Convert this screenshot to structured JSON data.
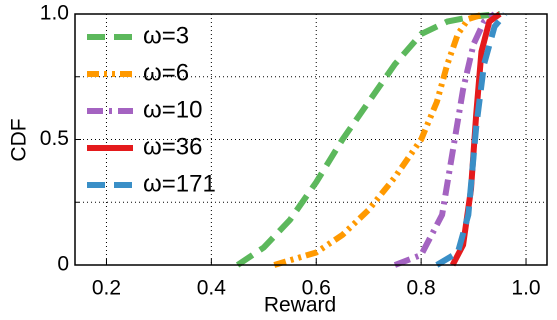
{
  "chart_data": {
    "type": "line",
    "xlabel": "Reward",
    "ylabel": "CDF",
    "xlim": [
      0.14,
      1.04
    ],
    "ylim": [
      0,
      1
    ],
    "xticks": [
      0.2,
      0.4,
      0.6,
      0.8,
      {
        "value": 1,
        "label": "1.0"
      }
    ],
    "yticks": [
      0,
      {
        "value": 0.5,
        "label": "0.5"
      },
      {
        "value": 1,
        "label": "1.0"
      }
    ],
    "yminorticks": [
      0.25,
      0.75
    ],
    "grid": true,
    "legend": "upper left",
    "series": [
      {
        "name": "ω=3",
        "color": "#5cb85c",
        "dash": "dash",
        "x": [
          0.45,
          0.5,
          0.55,
          0.6,
          0.65,
          0.7,
          0.75,
          0.8,
          0.85,
          0.9,
          0.95
        ],
        "values": [
          0,
          0.07,
          0.18,
          0.33,
          0.5,
          0.65,
          0.8,
          0.92,
          0.97,
          0.99,
          1
        ]
      },
      {
        "name": "ω=6",
        "color": "#ff9900",
        "dash": "dashdotdot",
        "x": [
          0.52,
          0.6,
          0.65,
          0.7,
          0.75,
          0.8,
          0.83,
          0.85,
          0.87,
          0.89,
          0.92
        ],
        "values": [
          0,
          0.05,
          0.12,
          0.22,
          0.35,
          0.5,
          0.65,
          0.8,
          0.92,
          0.98,
          1
        ]
      },
      {
        "name": "ω=10",
        "color": "#a463c1",
        "dash": "dashdot",
        "x": [
          0.75,
          0.8,
          0.84,
          0.86,
          0.88,
          0.9,
          0.92,
          0.94
        ],
        "values": [
          0,
          0.04,
          0.2,
          0.45,
          0.7,
          0.88,
          0.97,
          1
        ]
      },
      {
        "name": "ω=36",
        "color": "#e41a1c",
        "dash": "solid",
        "x": [
          0.86,
          0.88,
          0.895,
          0.905,
          0.915,
          0.93,
          0.95
        ],
        "values": [
          0,
          0.08,
          0.3,
          0.6,
          0.85,
          0.97,
          1
        ]
      },
      {
        "name": "ω=171",
        "color": "#3a8fc7",
        "dash": "dash",
        "x": [
          0.83,
          0.87,
          0.89,
          0.905,
          0.92,
          0.94,
          0.96
        ],
        "values": [
          0,
          0.05,
          0.2,
          0.55,
          0.8,
          0.95,
          1
        ]
      }
    ]
  }
}
